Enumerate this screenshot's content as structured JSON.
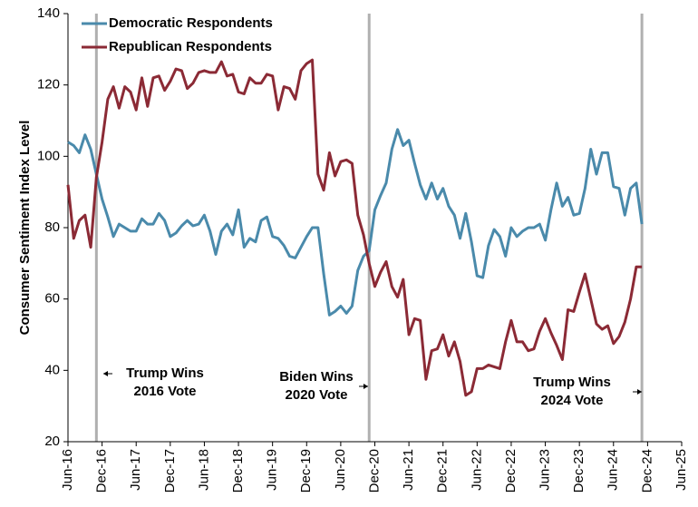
{
  "chart_data": {
    "type": "line",
    "y_label": "Consumer Sentiment Index Level",
    "categories": [
      "Jun-16",
      null,
      null,
      null,
      null,
      null,
      "Dec-16",
      null,
      null,
      null,
      null,
      null,
      "Jun-17",
      null,
      null,
      null,
      null,
      null,
      "Dec-17",
      null,
      null,
      null,
      null,
      null,
      "Jun-18",
      null,
      null,
      null,
      null,
      null,
      "Dec-18",
      null,
      null,
      null,
      null,
      null,
      "Jun-19",
      null,
      null,
      null,
      null,
      null,
      "Dec-19",
      null,
      null,
      null,
      null,
      null,
      "Jun-20",
      null,
      null,
      null,
      null,
      null,
      "Dec-20",
      null,
      null,
      null,
      null,
      null,
      "Jun-21",
      null,
      null,
      null,
      null,
      null,
      "Dec-21",
      null,
      null,
      null,
      null,
      null,
      "Jun-22",
      null,
      null,
      null,
      null,
      null,
      "Dec-22",
      null,
      null,
      null,
      null,
      null,
      "Jun-23",
      null,
      null,
      null,
      null,
      null,
      "Dec-23",
      null,
      null,
      null,
      null,
      null,
      "Jun-24",
      null,
      null,
      null,
      null,
      null,
      "Dec-24",
      null,
      null,
      null,
      null,
      null,
      "Jun-25"
    ],
    "series": [
      {
        "name": "Democratic Respondents",
        "color": "#4a8aab",
        "values": [
          104,
          103,
          101,
          106,
          102,
          95,
          88,
          83,
          77.5,
          81,
          80,
          79,
          79,
          82.5,
          81,
          81,
          84,
          82,
          77.5,
          78.5,
          80.5,
          82,
          80.5,
          81,
          83.5,
          79,
          72.5,
          79,
          81,
          78,
          85,
          74.5,
          77,
          76,
          82,
          83,
          77.5,
          77,
          75,
          72,
          71.5,
          74.5,
          77.5,
          80,
          80,
          67,
          55.5,
          56.5,
          58,
          56,
          58,
          68,
          72,
          73.5,
          85,
          89,
          92.5,
          102,
          107.5,
          103,
          104.5,
          98,
          92,
          88,
          92.5,
          88,
          91,
          86,
          83.5,
          77,
          84,
          76,
          66.5,
          66,
          75,
          79.5,
          77.5,
          72,
          80,
          77.5,
          79,
          80,
          80,
          81,
          76.5,
          85,
          92.5,
          86,
          88.5,
          83.5,
          84,
          91,
          102,
          95,
          101,
          101,
          91.5,
          91,
          83.5,
          91,
          92.5,
          81,
          null,
          null,
          null,
          null,
          null,
          null,
          null
        ]
      },
      {
        "name": "Republican Respondents",
        "color": "#8b2a35",
        "values": [
          92,
          77,
          82,
          83.5,
          74.5,
          94,
          104,
          116,
          119.5,
          113.5,
          119.5,
          118,
          113,
          122,
          114,
          122,
          122.5,
          118.5,
          121,
          124.5,
          124,
          119,
          120.5,
          123.5,
          124,
          123.5,
          123.5,
          126.5,
          122.5,
          123,
          118,
          117.5,
          122,
          120.5,
          120.5,
          123,
          122.5,
          113,
          119.5,
          119,
          116,
          124,
          126,
          127,
          95,
          90.5,
          101,
          94.5,
          98.5,
          99,
          98,
          83.5,
          78,
          70,
          63.5,
          67.5,
          70.5,
          63.5,
          60.5,
          65.5,
          50,
          54.5,
          54,
          37.5,
          45.5,
          46,
          50,
          44,
          48,
          42.5,
          33,
          34,
          40.5,
          40.5,
          41.5,
          41,
          40.5,
          48,
          54,
          48,
          48,
          45.5,
          46,
          51,
          54.5,
          50.5,
          47,
          43,
          57,
          56.5,
          62,
          67,
          60,
          53,
          51.5,
          52.5,
          47.5,
          49.5,
          53.5,
          60,
          69,
          69,
          null,
          null,
          null,
          null,
          null,
          null,
          null
        ]
      }
    ],
    "ylim": [
      20,
      140
    ],
    "yticks": [
      20,
      40,
      60,
      80,
      100,
      120,
      140
    ],
    "annotations": [
      {
        "lines": [
          "Trump Wins",
          "2016 Vote"
        ]
      },
      {
        "lines": [
          "Biden Wins",
          "2020 Vote"
        ]
      },
      {
        "lines": [
          "Trump Wins",
          "2024 Vote"
        ]
      }
    ],
    "legend": "upper left"
  }
}
